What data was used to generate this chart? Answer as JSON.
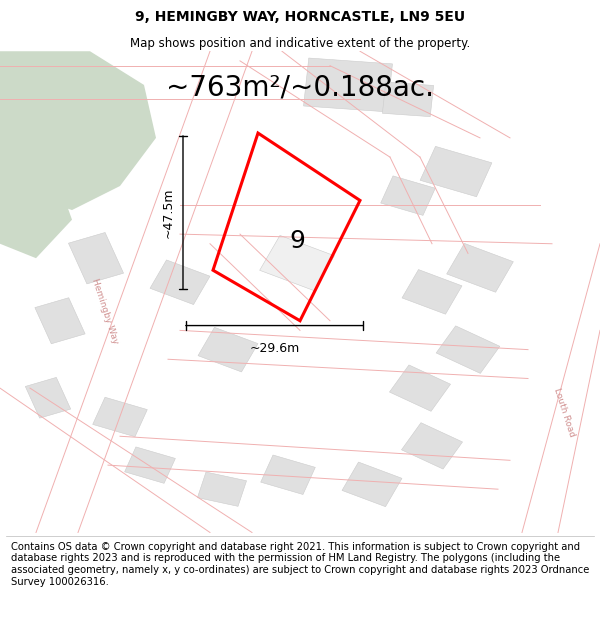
{
  "title": "9, HEMINGBY WAY, HORNCASTLE, LN9 5EU",
  "subtitle": "Map shows position and indicative extent of the property.",
  "area_text": "~763m²/~0.188ac.",
  "dim_height": "~47.5m",
  "dim_width": "~29.6m",
  "label_number": "9",
  "footer": "Contains OS data © Crown copyright and database right 2021. This information is subject to Crown copyright and database rights 2023 and is reproduced with the permission of HM Land Registry. The polygons (including the associated geometry, namely x, y co-ordinates) are subject to Crown copyright and database rights 2023 Ordnance Survey 100026316.",
  "background_color": "#ffffff",
  "map_bg_color": "#ffffff",
  "plot_color": "#ff0000",
  "road_color": "#f0b0b0",
  "building_color": "#e0e0e0",
  "building_edge": "#cccccc",
  "green_color": "#ccdac8",
  "title_fontsize": 10,
  "subtitle_fontsize": 8.5,
  "area_fontsize": 20,
  "footer_fontsize": 7.2,
  "number_fontsize": 18,
  "dim_fontsize": 9
}
